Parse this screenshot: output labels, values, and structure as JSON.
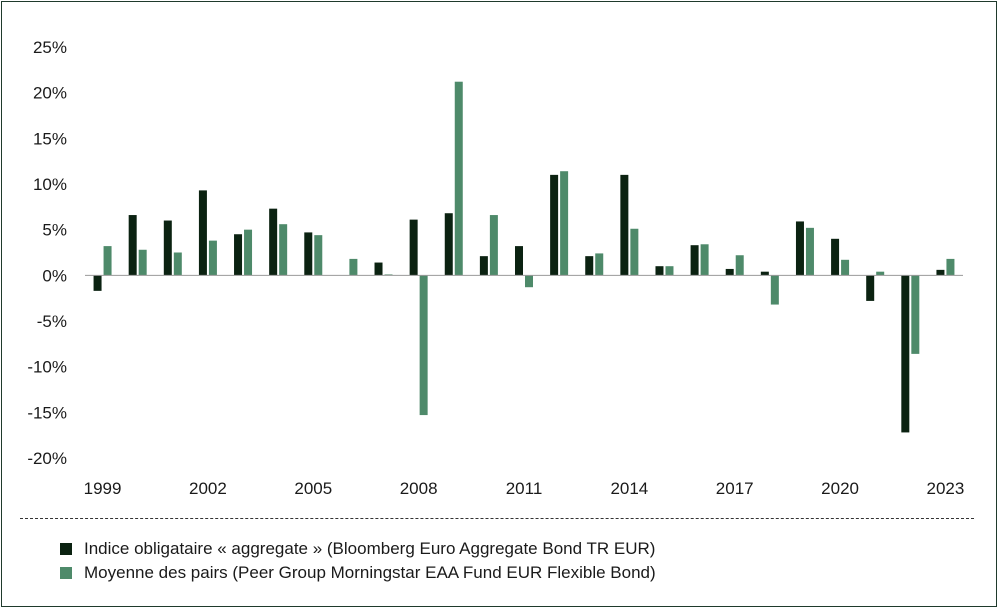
{
  "chart_data": {
    "type": "bar",
    "categories": [
      "1999",
      "2000",
      "2001",
      "2002",
      "2003",
      "2004",
      "2005",
      "2006",
      "2007",
      "2008",
      "2009",
      "2010",
      "2011",
      "2012",
      "2013",
      "2014",
      "2015",
      "2016",
      "2017",
      "2018",
      "2019",
      "2020",
      "2021",
      "2022",
      "2023"
    ],
    "x_tick_labels": [
      "1999",
      "2002",
      "2005",
      "2008",
      "2011",
      "2014",
      "2017",
      "2020",
      "2023"
    ],
    "y_tick_labels": [
      "25%",
      "20%",
      "15%",
      "10%",
      "5%",
      "0%",
      "-5%",
      "-10%",
      "-15%",
      "-20%"
    ],
    "ylim": [
      -20,
      25
    ],
    "series": [
      {
        "name": "Indice obligataire « aggregate » (Bloomberg Euro Aggregate Bond TR EUR)",
        "color": "#0b2211",
        "values": [
          -1.7,
          6.6,
          6.0,
          9.3,
          4.5,
          7.3,
          4.7,
          0.0,
          1.4,
          6.1,
          6.8,
          2.1,
          3.2,
          11.0,
          2.1,
          11.0,
          1.0,
          3.3,
          0.7,
          0.4,
          5.9,
          4.0,
          -2.8,
          -17.2,
          0.6
        ]
      },
      {
        "name": "Moyenne des pairs (Peer Group Morningstar EAA Fund EUR Flexible Bond)",
        "color": "#4e8a6a",
        "values": [
          3.2,
          2.8,
          2.5,
          3.8,
          5.0,
          5.6,
          4.4,
          1.8,
          0.1,
          -15.3,
          21.2,
          6.6,
          -1.3,
          11.4,
          2.4,
          5.1,
          1.0,
          3.4,
          2.2,
          -3.2,
          5.2,
          1.7,
          0.4,
          -8.6,
          1.8
        ]
      }
    ],
    "grid": false,
    "legend_position": "bottom-left"
  }
}
